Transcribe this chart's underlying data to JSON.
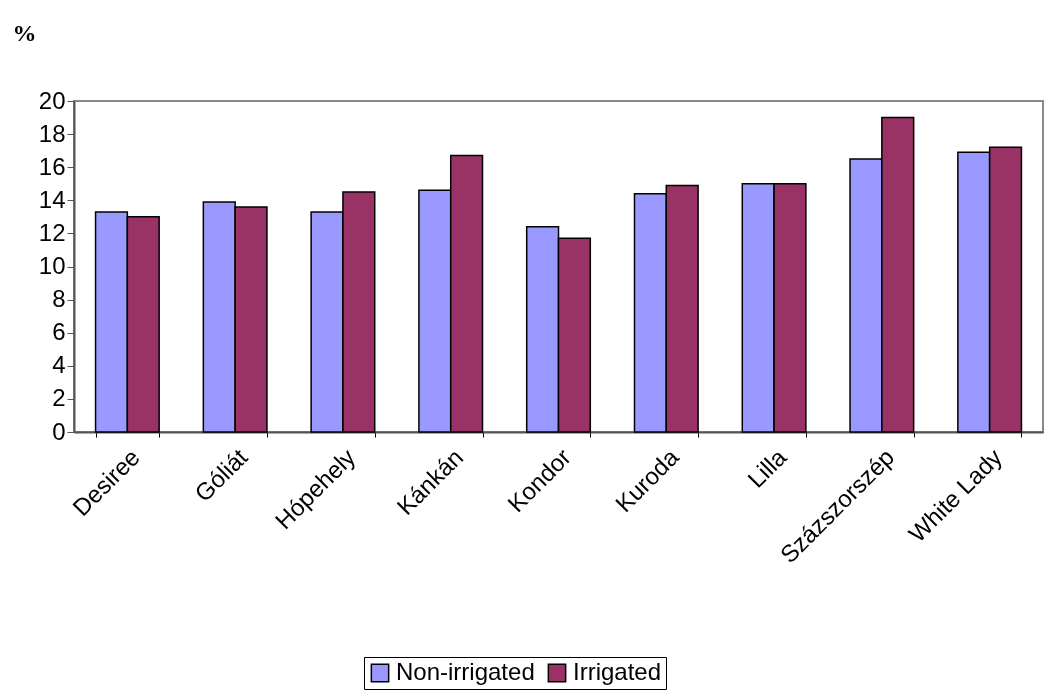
{
  "chart_data": {
    "type": "bar",
    "ylabel": "%",
    "categories": [
      "Desiree",
      "Góliát",
      "Hópehely",
      "Kánkán",
      "Kondor",
      "Kuroda",
      "Lilla",
      "Százszorszép",
      "White Lady"
    ],
    "series": [
      {
        "name": "Non-irrigated",
        "color": "#9999ff",
        "values": [
          13.3,
          13.9,
          13.3,
          14.6,
          12.4,
          14.4,
          15.0,
          16.5,
          16.9
        ]
      },
      {
        "name": "Irrigated",
        "color": "#993366",
        "values": [
          13.0,
          13.6,
          14.5,
          16.7,
          11.7,
          14.9,
          15.0,
          19.0,
          17.2
        ]
      }
    ],
    "ylim": [
      0,
      20
    ],
    "yticks": [
      0,
      2,
      4,
      6,
      8,
      10,
      12,
      14,
      16,
      18,
      20
    ],
    "grid": false,
    "legend": "bottom"
  }
}
